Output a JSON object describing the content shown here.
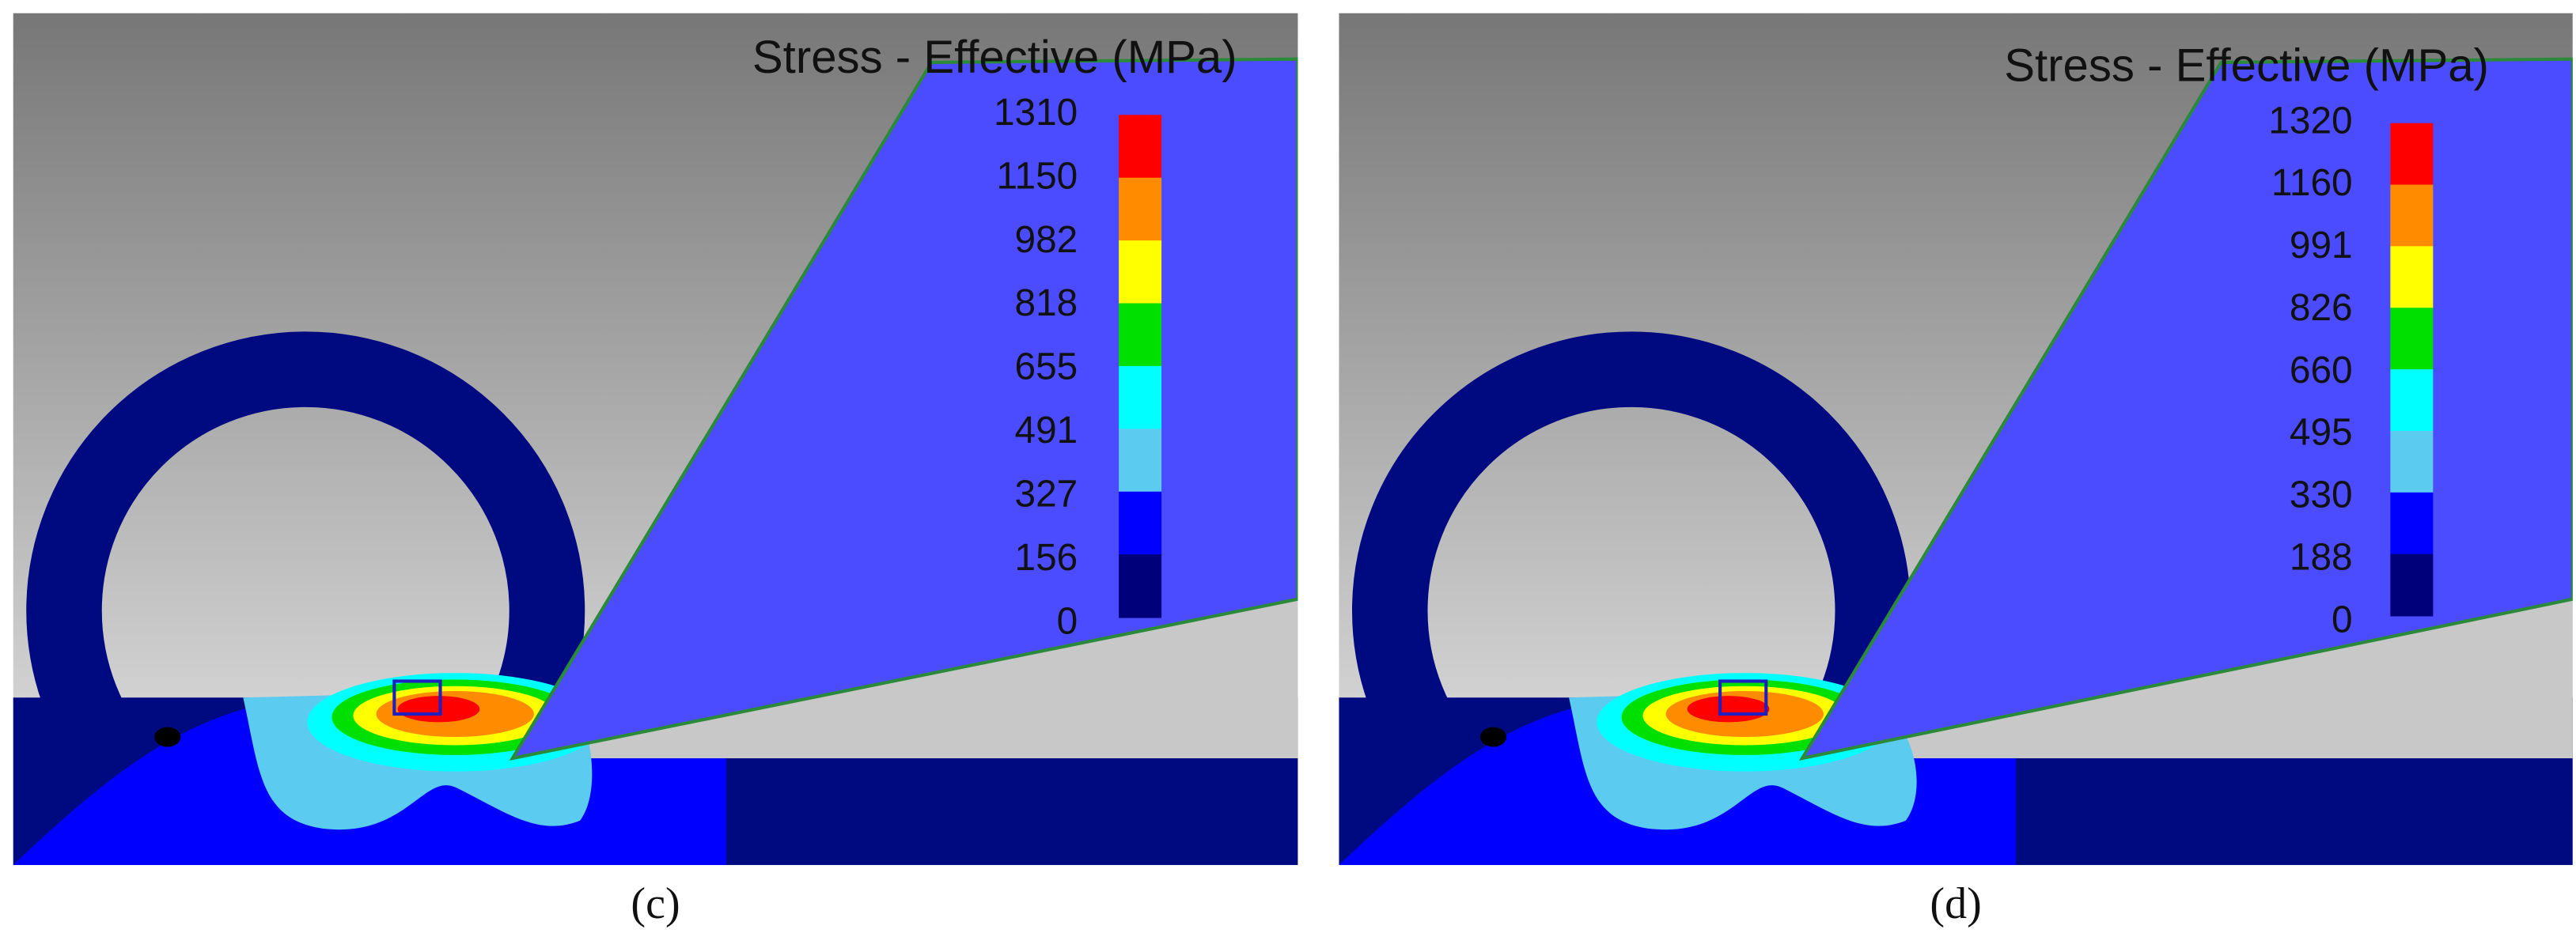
{
  "panels": [
    {
      "title": "Stress - Effective (MPa)",
      "scale_labels": [
        1310,
        1150,
        982,
        818,
        655,
        491,
        327,
        156,
        0
      ],
      "caption": "(c)"
    },
    {
      "title": "Stress - Effective (MPa)",
      "scale_labels": [
        1320,
        1160,
        991,
        826,
        660,
        495,
        330,
        188,
        0
      ],
      "caption": "(d)"
    }
  ]
}
